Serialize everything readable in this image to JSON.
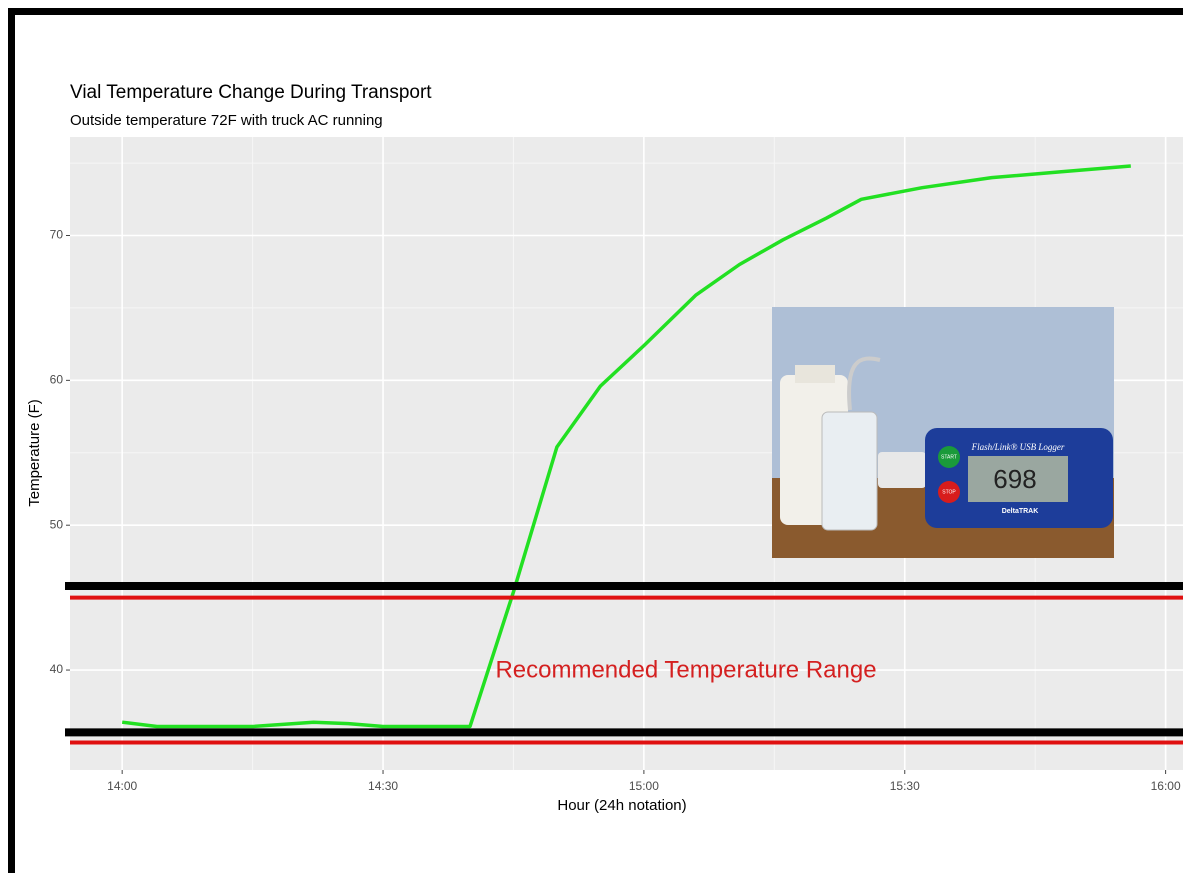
{
  "chart_data": {
    "type": "line",
    "title": "Vial Temperature Change During Transport",
    "subtitle": "Outside temperature 72F with truck AC running",
    "x_label": "Hour (24h notation)",
    "y_label": "Temperature (F)",
    "x": [
      840,
      844,
      855,
      862,
      866,
      870,
      880,
      885,
      890,
      895,
      900,
      906,
      911,
      916,
      921,
      925,
      932,
      940,
      948,
      956
    ],
    "series": [
      {
        "color": "#22e022",
        "values": [
          36.4,
          36.1,
          36.1,
          36.4,
          36.3,
          36.1,
          36.1,
          45.4,
          55.4,
          59.6,
          62.4,
          65.9,
          68.0,
          69.7,
          71.2,
          72.5,
          73.3,
          74.0,
          74.4,
          74.8
        ]
      }
    ],
    "xlim": [
      834,
      962
    ],
    "xticks": [
      {
        "value": 840,
        "label": "14:00"
      },
      {
        "value": 870,
        "label": "14:30"
      },
      {
        "value": 900,
        "label": "15:00"
      },
      {
        "value": 930,
        "label": "15:30"
      },
      {
        "value": 960,
        "label": "16:00"
      }
    ],
    "ylim": [
      33.1,
      76.8
    ],
    "yticks": [
      40,
      50,
      60,
      70
    ],
    "grid": true,
    "reference_lines": [
      {
        "value": 45.8,
        "color": "#000000"
      },
      {
        "value": 45,
        "color": "#e01010"
      },
      {
        "value": 35.7,
        "color": "#000000"
      },
      {
        "value": 35,
        "color": "#e01010"
      }
    ],
    "annotation": {
      "text": "Recommended Temperature Range",
      "color": "#d42020"
    },
    "photo_text": {
      "device": "Flash/Link® USB Logger",
      "start": "START",
      "stop": "STOP",
      "reading": "698",
      "brand": "DeltaTRAK"
    }
  }
}
